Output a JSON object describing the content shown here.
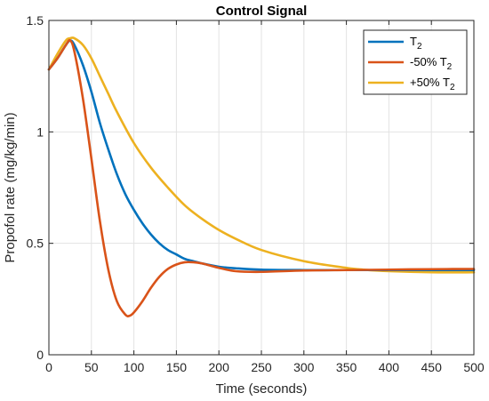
{
  "chart_data": {
    "type": "line",
    "title": "Control Signal",
    "xlabel": "Time (seconds)",
    "ylabel": "Propofol rate (mg/kg/min)",
    "xlim": [
      0,
      500
    ],
    "ylim": [
      0,
      1.5
    ],
    "xticks": [
      0,
      50,
      100,
      150,
      200,
      250,
      300,
      350,
      400,
      450,
      500
    ],
    "yticks": [
      0,
      0.5,
      1,
      1.5
    ],
    "xtick_labels": [
      "0",
      "50",
      "100",
      "150",
      "200",
      "250",
      "300",
      "350",
      "400",
      "450",
      "500"
    ],
    "ytick_labels": [
      "0",
      "0.5",
      "1",
      "1.5"
    ],
    "grid": true,
    "legend_position": "top-right",
    "series": [
      {
        "name": "T2",
        "legend_base": "T",
        "legend_sub": "2",
        "color": "#0072BD",
        "x": [
          0,
          10,
          20,
          25,
          30,
          40,
          50,
          60,
          70,
          80,
          90,
          100,
          110,
          120,
          130,
          140,
          150,
          160,
          170,
          180,
          200,
          220,
          250,
          300,
          350,
          400,
          450,
          500
        ],
        "y": [
          1.28,
          1.33,
          1.39,
          1.41,
          1.39,
          1.3,
          1.18,
          1.04,
          0.92,
          0.81,
          0.72,
          0.65,
          0.59,
          0.54,
          0.5,
          0.47,
          0.45,
          0.43,
          0.42,
          0.41,
          0.395,
          0.388,
          0.382,
          0.38,
          0.38,
          0.38,
          0.38,
          0.38
        ]
      },
      {
        "name": "-50% T2",
        "legend_base": "-50% T",
        "legend_sub": "2",
        "color": "#D95319",
        "x": [
          0,
          10,
          20,
          25,
          30,
          40,
          50,
          60,
          70,
          80,
          90,
          95,
          100,
          110,
          120,
          130,
          140,
          150,
          160,
          170,
          180,
          190,
          200,
          220,
          250,
          300,
          350,
          400,
          450,
          500
        ],
        "y": [
          1.28,
          1.33,
          1.39,
          1.41,
          1.36,
          1.15,
          0.88,
          0.6,
          0.38,
          0.24,
          0.18,
          0.175,
          0.19,
          0.24,
          0.3,
          0.35,
          0.385,
          0.405,
          0.415,
          0.415,
          0.41,
          0.4,
          0.39,
          0.375,
          0.372,
          0.378,
          0.38,
          0.382,
          0.384,
          0.385
        ]
      },
      {
        "name": "+50% T2",
        "legend_base": "+50% T",
        "legend_sub": "2",
        "color": "#EDB120",
        "x": [
          0,
          10,
          20,
          25,
          30,
          40,
          50,
          60,
          70,
          80,
          100,
          120,
          140,
          160,
          180,
          200,
          220,
          250,
          300,
          350,
          370,
          400,
          450,
          500
        ],
        "y": [
          1.28,
          1.35,
          1.41,
          1.42,
          1.42,
          1.39,
          1.33,
          1.25,
          1.17,
          1.09,
          0.95,
          0.84,
          0.75,
          0.67,
          0.61,
          0.56,
          0.52,
          0.47,
          0.42,
          0.39,
          0.382,
          0.375,
          0.37,
          0.37
        ]
      }
    ]
  }
}
